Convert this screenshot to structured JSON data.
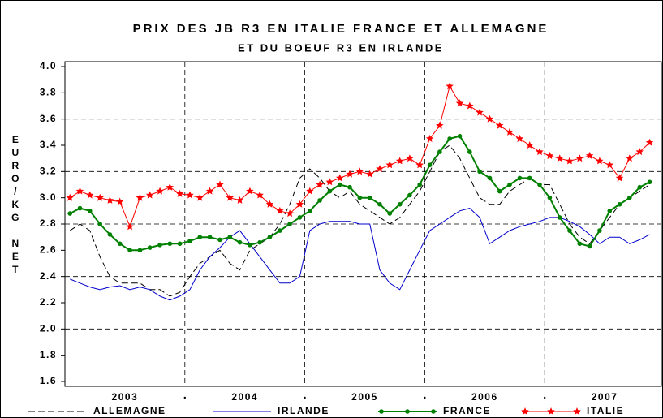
{
  "chart_data": {
    "type": "line",
    "title": "PRIX DES JB R3 EN ITALIE FRANCE ET ALLEMAGNE",
    "subtitle": "ET DU BOEUF R3 EN IRLANDE",
    "y_label": "EURO/KG NET",
    "x": [
      2003.042,
      2003.125,
      2003.208,
      2003.292,
      2003.375,
      2003.458,
      2003.542,
      2003.625,
      2003.708,
      2003.792,
      2003.875,
      2003.958,
      2004.042,
      2004.125,
      2004.208,
      2004.292,
      2004.375,
      2004.458,
      2004.542,
      2004.625,
      2004.708,
      2004.792,
      2004.875,
      2004.958,
      2005.042,
      2005.125,
      2005.208,
      2005.292,
      2005.375,
      2005.458,
      2005.542,
      2005.625,
      2005.708,
      2005.792,
      2005.875,
      2005.958,
      2006.042,
      2006.125,
      2006.208,
      2006.292,
      2006.375,
      2006.458,
      2006.542,
      2006.625,
      2006.708,
      2006.792,
      2006.875,
      2006.958,
      2007.042,
      2007.125,
      2007.208,
      2007.292,
      2007.375,
      2007.458,
      2007.542,
      2007.625,
      2007.708,
      2007.792,
      2007.875
    ],
    "series": [
      {
        "name": "ALLEMAGNE",
        "color": "#000000",
        "style": "dashed",
        "marker": "none",
        "values": [
          2.75,
          2.8,
          2.75,
          2.55,
          2.4,
          2.35,
          2.35,
          2.35,
          2.3,
          2.3,
          2.25,
          2.28,
          2.4,
          2.5,
          2.55,
          2.6,
          2.5,
          2.45,
          2.6,
          2.65,
          2.7,
          2.8,
          2.95,
          3.15,
          3.22,
          3.15,
          3.05,
          3.0,
          3.05,
          2.95,
          2.9,
          2.85,
          2.8,
          2.85,
          2.95,
          3.05,
          3.2,
          3.35,
          3.4,
          3.3,
          3.15,
          3.0,
          2.95,
          2.95,
          3.05,
          3.1,
          3.15,
          3.1,
          3.1,
          2.95,
          2.8,
          2.7,
          2.65,
          2.75,
          2.85,
          2.95,
          3.0,
          3.05,
          3.1
        ]
      },
      {
        "name": "IRLANDE",
        "color": "#0000cc",
        "style": "solid",
        "marker": "none",
        "values": [
          2.38,
          2.35,
          2.32,
          2.3,
          2.32,
          2.33,
          2.3,
          2.32,
          2.3,
          2.25,
          2.22,
          2.25,
          2.3,
          2.45,
          2.55,
          2.62,
          2.7,
          2.75,
          2.65,
          2.55,
          2.45,
          2.35,
          2.35,
          2.4,
          2.75,
          2.8,
          2.82,
          2.82,
          2.82,
          2.8,
          2.8,
          2.45,
          2.35,
          2.3,
          2.45,
          2.6,
          2.75,
          2.8,
          2.85,
          2.9,
          2.92,
          2.85,
          2.65,
          2.7,
          2.75,
          2.78,
          2.8,
          2.82,
          2.85,
          2.85,
          2.82,
          2.78,
          2.72,
          2.65,
          2.7,
          2.7,
          2.65,
          2.68,
          2.72
        ]
      },
      {
        "name": "FRANCE",
        "color": "#008000",
        "style": "solid",
        "marker": "circle",
        "values": [
          2.88,
          2.92,
          2.9,
          2.8,
          2.72,
          2.65,
          2.6,
          2.6,
          2.62,
          2.64,
          2.65,
          2.65,
          2.67,
          2.7,
          2.7,
          2.68,
          2.7,
          2.66,
          2.64,
          2.66,
          2.7,
          2.75,
          2.8,
          2.85,
          2.9,
          2.98,
          3.05,
          3.1,
          3.08,
          3.0,
          3.0,
          2.95,
          2.88,
          2.95,
          3.02,
          3.1,
          3.25,
          3.35,
          3.45,
          3.47,
          3.35,
          3.2,
          3.15,
          3.05,
          3.1,
          3.15,
          3.15,
          3.1,
          3.0,
          2.85,
          2.75,
          2.65,
          2.63,
          2.75,
          2.9,
          2.95,
          3.0,
          3.08,
          3.12
        ]
      },
      {
        "name": "ITALIE",
        "color": "#ff0000",
        "style": "solid",
        "marker": "star",
        "values": [
          3.0,
          3.05,
          3.02,
          3.0,
          2.98,
          2.97,
          2.78,
          3.0,
          3.02,
          3.05,
          3.08,
          3.03,
          3.02,
          3.0,
          3.05,
          3.1,
          3.0,
          2.98,
          3.05,
          3.02,
          2.95,
          2.9,
          2.88,
          2.95,
          3.05,
          3.1,
          3.12,
          3.15,
          3.18,
          3.2,
          3.18,
          3.22,
          3.25,
          3.28,
          3.3,
          3.25,
          3.45,
          3.55,
          3.85,
          3.72,
          3.7,
          3.65,
          3.6,
          3.55,
          3.5,
          3.45,
          3.4,
          3.35,
          3.32,
          3.3,
          3.28,
          3.3,
          3.32,
          3.28,
          3.25,
          3.15,
          3.3,
          3.35,
          3.42
        ]
      }
    ],
    "xlim": [
      2003,
      2008
    ],
    "xticks": [
      {
        "value": 2003.5,
        "label": "2003"
      },
      {
        "value": 2004.5,
        "label": "2004"
      },
      {
        "value": 2005.5,
        "label": "2005"
      },
      {
        "value": 2006.5,
        "label": "2006"
      },
      {
        "value": 2007.5,
        "label": "2007"
      }
    ],
    "xgrid": [
      2004,
      2005,
      2006,
      2007
    ],
    "ylim": [
      1.6,
      4.0
    ],
    "yticks": [
      1.6,
      1.8,
      {
        "value": 2.0,
        "label": "2.0"
      },
      2.2,
      2.4,
      2.6,
      2.8,
      {
        "value": 3.0,
        "label": "3.0"
      },
      3.2,
      3.4,
      3.6,
      3.8,
      {
        "value": 4.0,
        "label": "4.0"
      }
    ],
    "ygrid": [
      2.0,
      2.4,
      2.8,
      3.2,
      3.6
    ],
    "legend": "bottom"
  }
}
